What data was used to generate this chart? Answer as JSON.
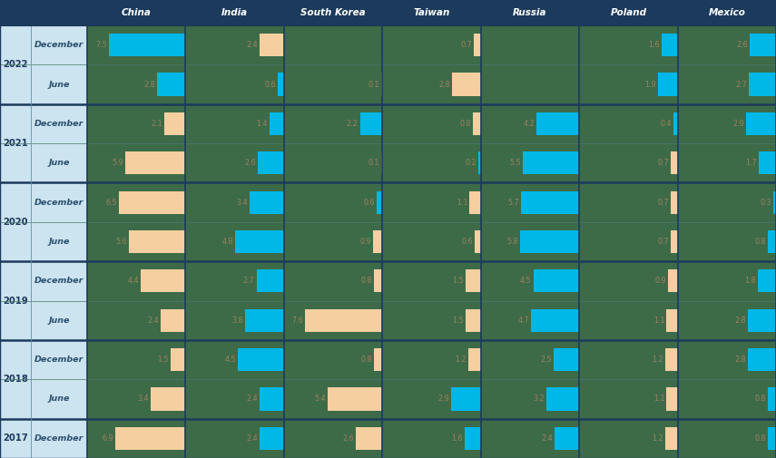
{
  "countries": [
    "China",
    "India",
    "South Korea",
    "Taiwan",
    "Russia",
    "Poland",
    "Mexico"
  ],
  "periods": [
    [
      "2022",
      "December"
    ],
    [
      "2022",
      "June"
    ],
    [
      "2021",
      "December"
    ],
    [
      "2021",
      "June"
    ],
    [
      "2020",
      "December"
    ],
    [
      "2020",
      "June"
    ],
    [
      "2019",
      "December"
    ],
    [
      "2019",
      "June"
    ],
    [
      "2018",
      "December"
    ],
    [
      "2018",
      "June"
    ],
    [
      "2017",
      "December"
    ]
  ],
  "values": {
    "China": [
      7.5,
      2.8,
      -2.1,
      -5.9,
      -6.5,
      -5.6,
      -4.4,
      -2.4,
      -1.5,
      -3.4,
      -6.9
    ],
    "India": [
      -2.4,
      0.6,
      1.4,
      2.6,
      3.4,
      4.8,
      2.7,
      3.8,
      4.5,
      2.4,
      2.4
    ],
    "South Korea": [
      0.0,
      -0.1,
      2.2,
      -0.1,
      0.6,
      -0.9,
      -0.8,
      -7.6,
      -0.8,
      -5.4,
      -2.6
    ],
    "Taiwan": [
      -0.7,
      -2.8,
      -0.8,
      0.2,
      -1.1,
      -0.6,
      -1.5,
      -1.5,
      -1.2,
      2.9,
      1.6
    ],
    "Russia": [
      0.0,
      0.0,
      4.2,
      5.5,
      5.7,
      5.8,
      4.5,
      4.7,
      2.5,
      3.2,
      2.4
    ],
    "Poland": [
      1.6,
      1.9,
      0.4,
      -0.7,
      -0.7,
      -0.7,
      -0.9,
      -1.1,
      -1.2,
      -1.1,
      -1.2
    ],
    "Mexico": [
      2.6,
      2.7,
      2.9,
      1.7,
      0.3,
      0.8,
      1.8,
      2.8,
      2.8,
      0.8,
      0.8
    ]
  },
  "header_bg": "#1b3a5c",
  "bg_dark": "#3d6b48",
  "bg_light": "#cce3f0",
  "bar_pos_color": "#00b8e8",
  "bar_neg_color": "#f5cfa0",
  "header_text_color": "#ffffff",
  "year_text_color": "#1b3a5c",
  "period_text_color": "#2a5070",
  "value_text_color": "#a08060",
  "sep_color": "#1b3a5c",
  "thin_sep_color": "#4a7a6a",
  "max_bar_val": 8.5
}
